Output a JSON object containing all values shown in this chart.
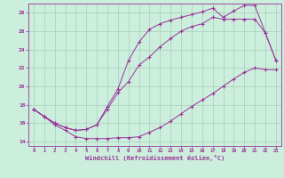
{
  "xlabel": "Windchill (Refroidissement éolien,°C)",
  "bg_color": "#cceedd",
  "line_color": "#993399",
  "grid_color": "#aaccbb",
  "xlim": [
    -0.5,
    23.5
  ],
  "ylim": [
    13.5,
    29.0
  ],
  "yticks": [
    14,
    16,
    18,
    20,
    22,
    24,
    26,
    28
  ],
  "xticks": [
    0,
    1,
    2,
    3,
    4,
    5,
    6,
    7,
    8,
    9,
    10,
    11,
    12,
    13,
    14,
    15,
    16,
    17,
    18,
    19,
    20,
    21,
    22,
    23
  ],
  "line1_x": [
    0,
    1,
    2,
    3,
    4,
    5,
    6,
    7,
    8,
    9,
    10,
    11,
    12,
    13,
    14,
    15,
    16,
    17,
    18,
    19,
    20,
    21,
    22,
    23
  ],
  "line1_y": [
    17.5,
    16.7,
    15.8,
    15.2,
    14.5,
    14.3,
    14.3,
    14.3,
    14.4,
    14.4,
    14.5,
    15.0,
    15.5,
    16.2,
    17.0,
    17.8,
    18.5,
    19.2,
    20.0,
    20.8,
    21.5,
    22.0,
    21.8,
    21.8
  ],
  "line2_x": [
    0,
    1,
    2,
    3,
    4,
    5,
    6,
    7,
    8,
    9,
    10,
    11,
    12,
    13,
    14,
    15,
    16,
    17,
    18,
    19,
    20,
    21,
    22,
    23
  ],
  "line2_y": [
    17.5,
    16.7,
    16.0,
    15.5,
    15.2,
    15.3,
    15.8,
    17.5,
    19.3,
    20.5,
    22.3,
    23.2,
    24.3,
    25.2,
    26.0,
    26.5,
    26.8,
    27.5,
    27.3,
    27.3,
    27.3,
    27.3,
    25.8,
    22.8
  ],
  "line3_x": [
    0,
    1,
    2,
    3,
    4,
    5,
    6,
    7,
    8,
    9,
    10,
    11,
    12,
    13,
    14,
    15,
    16,
    17,
    18,
    19,
    20,
    21,
    22,
    23
  ],
  "line3_y": [
    17.5,
    16.7,
    16.0,
    15.5,
    15.2,
    15.3,
    15.8,
    17.8,
    19.7,
    22.8,
    24.8,
    26.2,
    26.8,
    27.2,
    27.5,
    27.8,
    28.1,
    28.5,
    27.5,
    28.2,
    28.8,
    28.8,
    25.8,
    22.8
  ]
}
